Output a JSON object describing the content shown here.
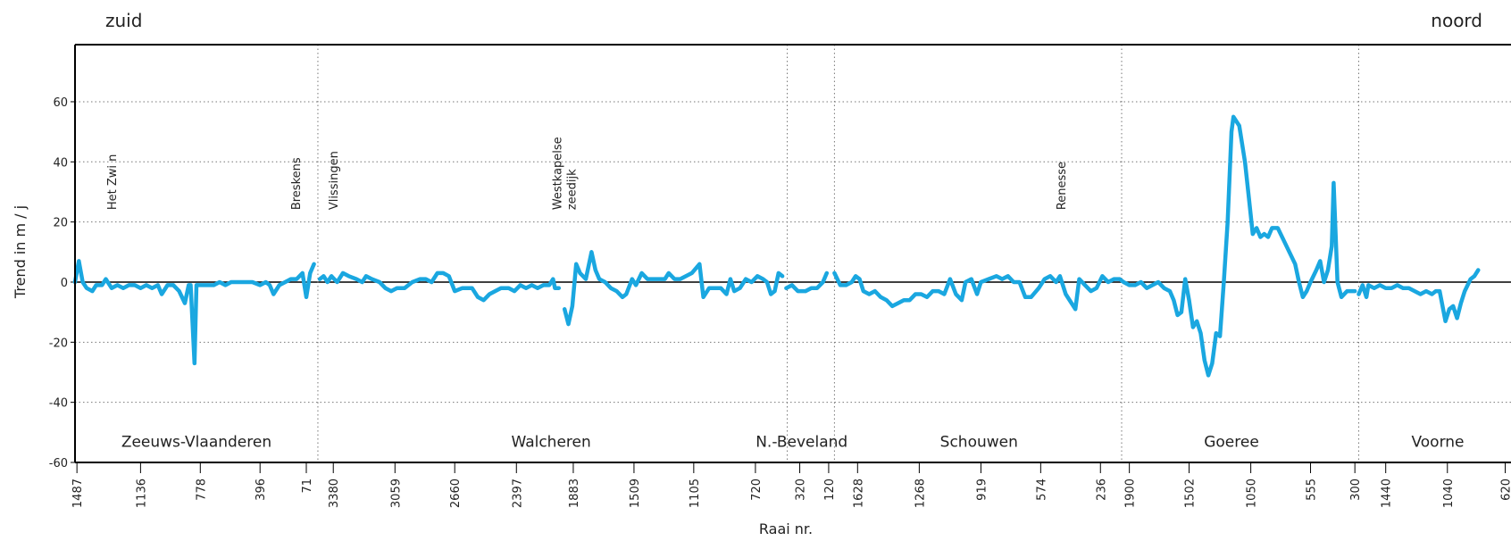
{
  "chart_data": {
    "type": "line",
    "left_label": "zuid",
    "right_label": "noord",
    "ylabel": "Trend in m / j",
    "xlabel": "Raai nr.",
    "ylim": [
      -60,
      79
    ],
    "yticks": [
      -60,
      -40,
      -20,
      0,
      20,
      40,
      60
    ],
    "grid": true,
    "xlim": [
      0,
      1490
    ],
    "xticks": [
      {
        "value": 2,
        "label": "1487"
      },
      {
        "value": 68,
        "label": "1136"
      },
      {
        "value": 130,
        "label": "778"
      },
      {
        "value": 192,
        "label": "396"
      },
      {
        "value": 240,
        "label": "71"
      },
      {
        "value": 268,
        "label": "3380"
      },
      {
        "value": 332,
        "label": "3059"
      },
      {
        "value": 394,
        "label": "2660"
      },
      {
        "value": 458,
        "label": "2397"
      },
      {
        "value": 517,
        "label": "1883"
      },
      {
        "value": 580,
        "label": "1509"
      },
      {
        "value": 642,
        "label": "1105"
      },
      {
        "value": 706,
        "label": "720"
      },
      {
        "value": 752,
        "label": "320"
      },
      {
        "value": 782,
        "label": "120"
      },
      {
        "value": 812,
        "label": "1628"
      },
      {
        "value": 876,
        "label": "1268"
      },
      {
        "value": 940,
        "label": "919"
      },
      {
        "value": 1002,
        "label": "574"
      },
      {
        "value": 1064,
        "label": "236"
      },
      {
        "value": 1094,
        "label": "1900"
      },
      {
        "value": 1156,
        "label": "1502"
      },
      {
        "value": 1220,
        "label": "1050"
      },
      {
        "value": 1282,
        "label": "555"
      },
      {
        "value": 1328,
        "label": "300"
      },
      {
        "value": 1360,
        "label": "1440"
      },
      {
        "value": 1424,
        "label": "1040"
      },
      {
        "value": 1484,
        "label": "620"
      }
    ],
    "dividers": [
      252,
      739,
      788,
      1086,
      1332
    ],
    "sections": [
      {
        "label": "Zeeuws-Vlaanderen",
        "x": 126
      },
      {
        "label": "Walcheren",
        "x": 494
      },
      {
        "label": "N.-Beveland",
        "x": 754
      },
      {
        "label": "Schouwen",
        "x": 938
      },
      {
        "label": "Goeree",
        "x": 1200
      },
      {
        "label": "Voorne",
        "x": 1414
      }
    ],
    "annotations": [
      {
        "lines": [
          "Het Zwi n"
        ],
        "x": 38
      },
      {
        "lines": [
          "Breskens"
        ],
        "x": 229
      },
      {
        "lines": [
          "Vlissingen"
        ],
        "x": 268
      },
      {
        "lines": [
          "Westkapelse",
          "zeedijk"
        ],
        "x": 500
      },
      {
        "lines": [
          "Renesse"
        ],
        "x": 1023
      }
    ],
    "color": "#1aa7e0",
    "x": [
      0,
      4,
      8,
      12,
      18,
      22,
      28,
      32,
      38,
      44,
      50,
      56,
      62,
      68,
      74,
      80,
      86,
      90,
      96,
      102,
      108,
      114,
      118,
      120,
      124,
      126,
      132,
      138,
      144,
      150,
      156,
      162,
      172,
      184,
      192,
      198,
      202,
      206,
      212,
      218,
      224,
      230,
      236,
      240,
      244,
      248,
      250,
      254,
      258,
      262,
      266,
      272,
      278,
      284,
      292,
      298,
      302,
      308,
      316,
      322,
      328,
      334,
      342,
      350,
      358,
      364,
      370,
      376,
      382,
      388,
      394,
      402,
      412,
      418,
      424,
      430,
      436,
      442,
      450,
      456,
      462,
      468,
      474,
      480,
      486,
      492,
      496,
      498,
      502,
      504,
      508,
      512,
      516,
      520,
      524,
      530,
      536,
      540,
      544,
      550,
      556,
      562,
      568,
      572,
      578,
      582,
      588,
      594,
      600,
      606,
      612,
      616,
      622,
      628,
      634,
      640,
      648,
      652,
      658,
      664,
      670,
      676,
      680,
      684,
      690,
      696,
      702,
      708,
      714,
      718,
      722,
      726,
      730,
      734,
      736,
      738,
      744,
      750,
      758,
      764,
      770,
      776,
      780,
      784,
      788,
      794,
      800,
      806,
      810,
      814,
      818,
      824,
      830,
      836,
      842,
      848,
      854,
      860,
      866,
      872,
      878,
      884,
      890,
      896,
      902,
      908,
      914,
      920,
      924,
      930,
      936,
      940,
      948,
      956,
      962,
      968,
      974,
      980,
      986,
      992,
      1000,
      1006,
      1012,
      1018,
      1022,
      1028,
      1034,
      1038,
      1042,
      1048,
      1054,
      1060,
      1066,
      1072,
      1078,
      1084,
      1088,
      1094,
      1100,
      1106,
      1112,
      1118,
      1124,
      1130,
      1136,
      1140,
      1144,
      1148,
      1152,
      1156,
      1160,
      1164,
      1168,
      1172,
      1176,
      1180,
      1184,
      1188,
      1192,
      1196,
      1200,
      1202,
      1208,
      1214,
      1218,
      1222,
      1226,
      1230,
      1234,
      1238,
      1242,
      1248,
      1254,
      1260,
      1266,
      1270,
      1274,
      1278,
      1282,
      1288,
      1292,
      1296,
      1300,
      1304,
      1306,
      1310,
      1314,
      1320,
      1324,
      1328,
      1330,
      1332,
      1336,
      1340,
      1342,
      1348,
      1354,
      1360,
      1366,
      1372,
      1378,
      1384,
      1390,
      1396,
      1402,
      1408,
      1412,
      1416,
      1422,
      1426,
      1430,
      1434,
      1438,
      1442,
      1448,
      1452,
      1456
    ],
    "values": [
      0,
      7,
      0,
      -2,
      -3,
      -1,
      -1,
      1,
      -2,
      -1,
      -2,
      -1,
      -1,
      -2,
      -1,
      -2,
      -1,
      -4,
      -1,
      -1,
      -3,
      -7,
      -1,
      -1,
      -27,
      -1,
      -1,
      -1,
      -1,
      0,
      -1,
      0,
      0,
      0,
      -1,
      0,
      -1,
      -4,
      -1,
      0,
      1,
      1,
      3,
      -5,
      3,
      6,
      null,
      1,
      2,
      0,
      2,
      0,
      3,
      2,
      1,
      0,
      2,
      1,
      0,
      -2,
      -3,
      -2,
      -2,
      0,
      1,
      1,
      0,
      3,
      3,
      2,
      -3,
      -2,
      -2,
      -5,
      -6,
      -4,
      -3,
      -2,
      -2,
      -3,
      -1,
      -2,
      -1,
      -2,
      -1,
      -1,
      1,
      -2,
      -2,
      null,
      -9,
      -14,
      -8,
      6,
      3,
      1,
      10,
      4,
      1,
      0,
      -2,
      -3,
      -5,
      -4,
      1,
      -1,
      3,
      1,
      1,
      1,
      1,
      3,
      1,
      1,
      2,
      3,
      6,
      -5,
      -2,
      -2,
      -2,
      -4,
      1,
      -3,
      -2,
      1,
      0,
      2,
      1,
      0,
      -4,
      -3,
      3,
      2,
      null,
      -2,
      -1,
      -3,
      -3,
      -2,
      -2,
      0,
      3,
      null,
      3,
      -1,
      -1,
      0,
      2,
      1,
      -3,
      -4,
      -3,
      -5,
      -6,
      -8,
      -7,
      -6,
      -6,
      -4,
      -4,
      -5,
      -3,
      -3,
      -4,
      1,
      -4,
      -6,
      0,
      1,
      -4,
      0,
      1,
      2,
      1,
      2,
      0,
      0,
      -5,
      -5,
      -2,
      1,
      2,
      0,
      2,
      -4,
      -7,
      -9,
      1,
      -1,
      -3,
      -2,
      2,
      0,
      1,
      1,
      0,
      -1,
      -1,
      0,
      -2,
      -1,
      0,
      -2,
      -3,
      -6,
      -11,
      -10,
      1,
      -6,
      -15,
      -13,
      -17,
      -26,
      -31,
      -27,
      -17,
      -18,
      0,
      20,
      50,
      55,
      52,
      40,
      28,
      16,
      18,
      15,
      16,
      15,
      18,
      18,
      14,
      10,
      6,
      0,
      -5,
      -3,
      0,
      4,
      7,
      0,
      4,
      12,
      33,
      0,
      -5,
      -3,
      -3,
      -3,
      null,
      -4,
      -1,
      -5,
      -1,
      -2,
      -1,
      -2,
      -2,
      -1,
      -2,
      -2,
      -3,
      -4,
      -3,
      -4,
      -3,
      -3,
      -13,
      -9,
      -8,
      -12,
      -7,
      -3,
      1,
      2,
      4
    ]
  }
}
